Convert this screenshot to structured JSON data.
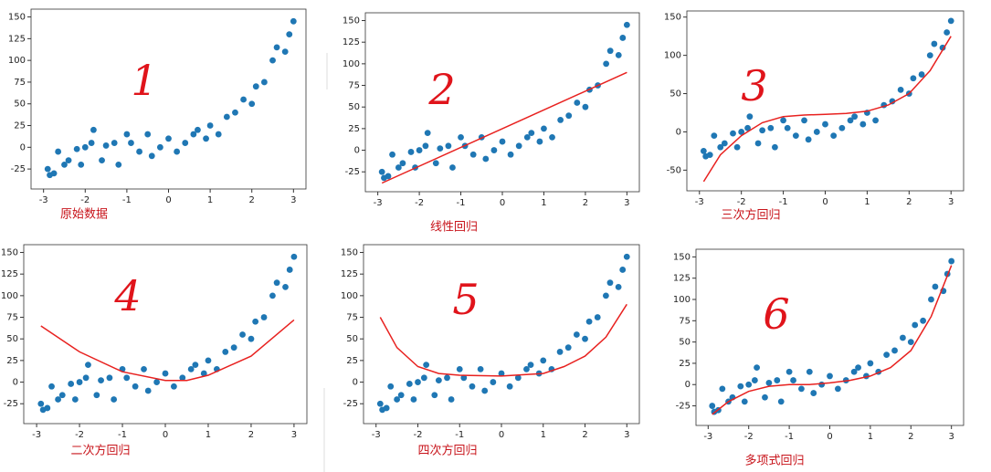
{
  "chart_data": [
    {
      "type": "scatter",
      "caption": "原始数据",
      "annotation": "1",
      "color": "#1f77b4",
      "x": [
        -2.9,
        -2.85,
        -2.75,
        -2.65,
        -2.5,
        -2.4,
        -2.2,
        -2.1,
        -2.0,
        -1.85,
        -1.8,
        -1.6,
        -1.5,
        -1.3,
        -1.2,
        -1.0,
        -0.9,
        -0.7,
        -0.5,
        -0.4,
        -0.2,
        0.0,
        0.2,
        0.4,
        0.6,
        0.7,
        0.9,
        1.0,
        1.2,
        1.4,
        1.6,
        1.8,
        2.0,
        2.1,
        2.3,
        2.5,
        2.6,
        2.8,
        2.9,
        3.0
      ],
      "y": [
        -25,
        -32,
        -30,
        -5,
        -20,
        -15,
        -2,
        -20,
        0,
        5,
        20,
        -15,
        2,
        5,
        -20,
        15,
        5,
        -5,
        15,
        -10,
        0,
        10,
        -5,
        5,
        15,
        20,
        10,
        25,
        15,
        35,
        40,
        55,
        50,
        70,
        75,
        100,
        115,
        110,
        130,
        145
      ],
      "xlim": [
        -3.3,
        3.3
      ],
      "ylim": [
        -48,
        159
      ],
      "xticks": [
        -3,
        -2,
        -1,
        0,
        1,
        2,
        3
      ],
      "yticks": [
        -25,
        0,
        25,
        50,
        75,
        100,
        125,
        150
      ]
    },
    {
      "type": "scatter",
      "caption": "线性回归",
      "annotation": "2",
      "color": "#1f77b4",
      "x": [
        -2.9,
        -2.85,
        -2.75,
        -2.65,
        -2.5,
        -2.4,
        -2.2,
        -2.1,
        -2.0,
        -1.85,
        -1.8,
        -1.6,
        -1.5,
        -1.3,
        -1.2,
        -1.0,
        -0.9,
        -0.7,
        -0.5,
        -0.4,
        -0.2,
        0.0,
        0.2,
        0.4,
        0.6,
        0.7,
        0.9,
        1.0,
        1.2,
        1.4,
        1.6,
        1.8,
        2.0,
        2.1,
        2.3,
        2.5,
        2.6,
        2.8,
        2.9,
        3.0
      ],
      "y": [
        -25,
        -32,
        -30,
        -5,
        -20,
        -15,
        -2,
        -20,
        0,
        5,
        20,
        -15,
        2,
        5,
        -20,
        15,
        5,
        -5,
        15,
        -10,
        0,
        10,
        -5,
        5,
        15,
        20,
        10,
        25,
        15,
        35,
        40,
        55,
        50,
        70,
        75,
        100,
        115,
        110,
        130,
        145
      ],
      "fit": {
        "color": "#e8211f",
        "x": [
          -2.9,
          3.0
        ],
        "y": [
          -38,
          90
        ]
      },
      "xlim": [
        -3.3,
        3.3
      ],
      "ylim": [
        -48,
        159
      ],
      "xticks": [
        -3,
        -2,
        -1,
        0,
        1,
        2,
        3
      ],
      "yticks": [
        -25,
        0,
        25,
        50,
        75,
        100,
        125,
        150
      ]
    },
    {
      "type": "scatter",
      "caption": "三次方回归",
      "annotation": "3",
      "color": "#1f77b4",
      "x": [
        -2.9,
        -2.85,
        -2.75,
        -2.65,
        -2.5,
        -2.4,
        -2.2,
        -2.1,
        -2.0,
        -1.85,
        -1.8,
        -1.6,
        -1.5,
        -1.3,
        -1.2,
        -1.0,
        -0.9,
        -0.7,
        -0.5,
        -0.4,
        -0.2,
        0.0,
        0.2,
        0.4,
        0.6,
        0.7,
        0.9,
        1.0,
        1.2,
        1.4,
        1.6,
        1.8,
        2.0,
        2.1,
        2.3,
        2.5,
        2.6,
        2.8,
        2.9,
        3.0
      ],
      "y": [
        -25,
        -32,
        -30,
        -5,
        -20,
        -15,
        -2,
        -20,
        0,
        5,
        20,
        -15,
        2,
        5,
        -20,
        15,
        5,
        -5,
        15,
        -10,
        0,
        10,
        -5,
        5,
        15,
        20,
        10,
        25,
        15,
        35,
        40,
        55,
        50,
        70,
        75,
        100,
        115,
        110,
        130,
        145
      ],
      "fit": {
        "color": "#e8211f",
        "x": [
          -2.9,
          -2.5,
          -2.0,
          -1.5,
          -1.0,
          -0.5,
          0.0,
          0.5,
          1.0,
          1.5,
          2.0,
          2.5,
          3.0
        ],
        "y": [
          -65,
          -30,
          -5,
          12,
          20,
          22,
          23,
          24,
          27,
          35,
          50,
          80,
          125
        ]
      },
      "xlim": [
        -3.3,
        3.3
      ],
      "ylim": [
        -77,
        158
      ],
      "xticks": [
        -3,
        -2,
        -1,
        0,
        1,
        2,
        3
      ],
      "yticks": [
        -50,
        0,
        50,
        100,
        150
      ]
    },
    {
      "type": "scatter",
      "caption": "二次方回归",
      "annotation": "4",
      "color": "#1f77b4",
      "x": [
        -2.9,
        -2.85,
        -2.75,
        -2.65,
        -2.5,
        -2.4,
        -2.2,
        -2.1,
        -2.0,
        -1.85,
        -1.8,
        -1.6,
        -1.5,
        -1.3,
        -1.2,
        -1.0,
        -0.9,
        -0.7,
        -0.5,
        -0.4,
        -0.2,
        0.0,
        0.2,
        0.4,
        0.6,
        0.7,
        0.9,
        1.0,
        1.2,
        1.4,
        1.6,
        1.8,
        2.0,
        2.1,
        2.3,
        2.5,
        2.6,
        2.8,
        2.9,
        3.0
      ],
      "y": [
        -25,
        -32,
        -30,
        -5,
        -20,
        -15,
        -2,
        -20,
        0,
        5,
        20,
        -15,
        2,
        5,
        -20,
        15,
        5,
        -5,
        15,
        -10,
        0,
        10,
        -5,
        5,
        15,
        20,
        10,
        25,
        15,
        35,
        40,
        55,
        50,
        70,
        75,
        100,
        115,
        110,
        130,
        145
      ],
      "fit": {
        "color": "#e8211f",
        "x": [
          -2.9,
          -2.0,
          -1.0,
          0.0,
          0.5,
          1.0,
          2.0,
          3.0
        ],
        "y": [
          65,
          35,
          12,
          2,
          2,
          8,
          30,
          72
        ]
      },
      "xlim": [
        -3.3,
        3.3
      ],
      "ylim": [
        -48,
        159
      ],
      "xticks": [
        -3,
        -2,
        -1,
        0,
        1,
        2,
        3
      ],
      "yticks": [
        -25,
        0,
        25,
        50,
        75,
        100,
        125,
        150
      ]
    },
    {
      "type": "scatter",
      "caption": "四次方回归",
      "annotation": "5",
      "color": "#1f77b4",
      "x": [
        -2.9,
        -2.85,
        -2.75,
        -2.65,
        -2.5,
        -2.4,
        -2.2,
        -2.1,
        -2.0,
        -1.85,
        -1.8,
        -1.6,
        -1.5,
        -1.3,
        -1.2,
        -1.0,
        -0.9,
        -0.7,
        -0.5,
        -0.4,
        -0.2,
        0.0,
        0.2,
        0.4,
        0.6,
        0.7,
        0.9,
        1.0,
        1.2,
        1.4,
        1.6,
        1.8,
        2.0,
        2.1,
        2.3,
        2.5,
        2.6,
        2.8,
        2.9,
        3.0
      ],
      "y": [
        -25,
        -32,
        -30,
        -5,
        -20,
        -15,
        -2,
        -20,
        0,
        5,
        20,
        -15,
        2,
        5,
        -20,
        15,
        5,
        -5,
        15,
        -10,
        0,
        10,
        -5,
        5,
        15,
        20,
        10,
        25,
        15,
        35,
        40,
        55,
        50,
        70,
        75,
        100,
        115,
        110,
        130,
        145
      ],
      "fit": {
        "color": "#e8211f",
        "x": [
          -2.9,
          -2.5,
          -2.0,
          -1.5,
          -1.0,
          0.0,
          1.0,
          1.5,
          2.0,
          2.5,
          3.0
        ],
        "y": [
          75,
          40,
          18,
          10,
          8,
          7,
          10,
          18,
          30,
          52,
          90
        ]
      },
      "xlim": [
        -3.3,
        3.3
      ],
      "ylim": [
        -48,
        159
      ],
      "xticks": [
        -3,
        -2,
        -1,
        0,
        1,
        2,
        3
      ],
      "yticks": [
        -25,
        0,
        25,
        50,
        75,
        100,
        125,
        150
      ]
    },
    {
      "type": "scatter",
      "caption": "多项式回归",
      "annotation": "6",
      "color": "#1f77b4",
      "x": [
        -2.9,
        -2.85,
        -2.75,
        -2.65,
        -2.5,
        -2.4,
        -2.2,
        -2.1,
        -2.0,
        -1.85,
        -1.8,
        -1.6,
        -1.5,
        -1.3,
        -1.2,
        -1.0,
        -0.9,
        -0.7,
        -0.5,
        -0.4,
        -0.2,
        0.0,
        0.2,
        0.4,
        0.6,
        0.7,
        0.9,
        1.0,
        1.2,
        1.4,
        1.6,
        1.8,
        2.0,
        2.1,
        2.3,
        2.5,
        2.6,
        2.8,
        2.9,
        3.0
      ],
      "y": [
        -25,
        -32,
        -30,
        -5,
        -20,
        -15,
        -2,
        -20,
        0,
        5,
        20,
        -15,
        2,
        5,
        -20,
        15,
        5,
        -5,
        15,
        -10,
        0,
        10,
        -5,
        5,
        15,
        20,
        10,
        25,
        15,
        35,
        40,
        55,
        50,
        70,
        75,
        100,
        115,
        110,
        130,
        145
      ],
      "fit": {
        "color": "#e8211f",
        "x": [
          -2.9,
          -2.5,
          -2.0,
          -1.5,
          -1.0,
          -0.5,
          0.0,
          0.5,
          1.0,
          1.5,
          2.0,
          2.5,
          3.0
        ],
        "y": [
          -35,
          -20,
          -8,
          -2,
          0,
          0,
          2,
          5,
          10,
          20,
          40,
          80,
          140
        ]
      },
      "xlim": [
        -3.3,
        3.3
      ],
      "ylim": [
        -48,
        159
      ],
      "xticks": [
        -3,
        -2,
        -1,
        0,
        1,
        2,
        3
      ],
      "yticks": [
        -25,
        0,
        25,
        50,
        75,
        100,
        125,
        150
      ]
    }
  ]
}
